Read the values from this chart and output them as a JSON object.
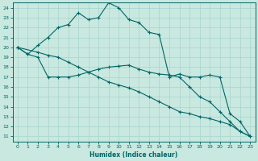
{
  "xlabel": "Humidex (Indice chaleur)",
  "xlim": [
    -0.5,
    23.5
  ],
  "ylim": [
    10.5,
    24.5
  ],
  "yticks": [
    11,
    12,
    13,
    14,
    15,
    16,
    17,
    18,
    19,
    20,
    21,
    22,
    23,
    24
  ],
  "xticks": [
    0,
    1,
    2,
    3,
    4,
    5,
    6,
    7,
    8,
    9,
    10,
    11,
    12,
    13,
    14,
    15,
    16,
    17,
    18,
    19,
    20,
    21,
    22,
    23
  ],
  "bg_color": "#c8e8e0",
  "grid_color": "#a8d4cc",
  "line_color": "#006666",
  "curve_x": [
    0,
    1,
    2,
    3,
    4,
    5,
    6,
    7,
    8,
    9,
    10,
    11,
    12,
    13,
    14,
    15,
    16,
    17,
    18,
    19,
    20,
    21,
    22,
    23
  ],
  "curve_y": [
    20,
    19.3,
    20.2,
    21.0,
    22.0,
    22.3,
    23.5,
    22.8,
    23.0,
    24.5,
    24.0,
    22.8,
    22.5,
    21.5,
    21.3,
    17.0,
    17.3,
    17.0,
    17.0,
    17.2,
    17.0,
    13.3,
    12.5,
    11.0
  ],
  "line1_x": [
    0,
    1,
    2,
    3,
    4,
    5,
    6,
    7,
    8,
    9,
    10,
    11,
    12,
    13,
    14,
    15,
    16,
    17,
    18,
    19,
    20,
    21,
    22,
    23
  ],
  "line1_y": [
    20,
    19.3,
    19.0,
    17.0,
    17.0,
    17.0,
    17.2,
    17.5,
    17.8,
    18.0,
    18.1,
    18.2,
    17.8,
    17.5,
    17.3,
    17.2,
    17.0,
    16.0,
    15.0,
    14.5,
    13.5,
    12.5,
    11.5,
    11.0
  ],
  "line2_x": [
    0,
    2,
    3,
    4,
    5,
    6,
    7,
    8,
    9,
    10,
    11,
    12,
    13,
    14,
    15,
    16,
    17,
    18,
    19,
    20,
    21,
    22,
    23
  ],
  "line2_y": [
    20,
    19.5,
    19.2,
    19.0,
    18.5,
    18.0,
    17.5,
    17.0,
    16.5,
    16.2,
    15.9,
    15.5,
    15.0,
    14.5,
    14.0,
    13.5,
    13.3,
    13.0,
    12.8,
    12.5,
    12.2,
    11.5,
    11.0
  ]
}
